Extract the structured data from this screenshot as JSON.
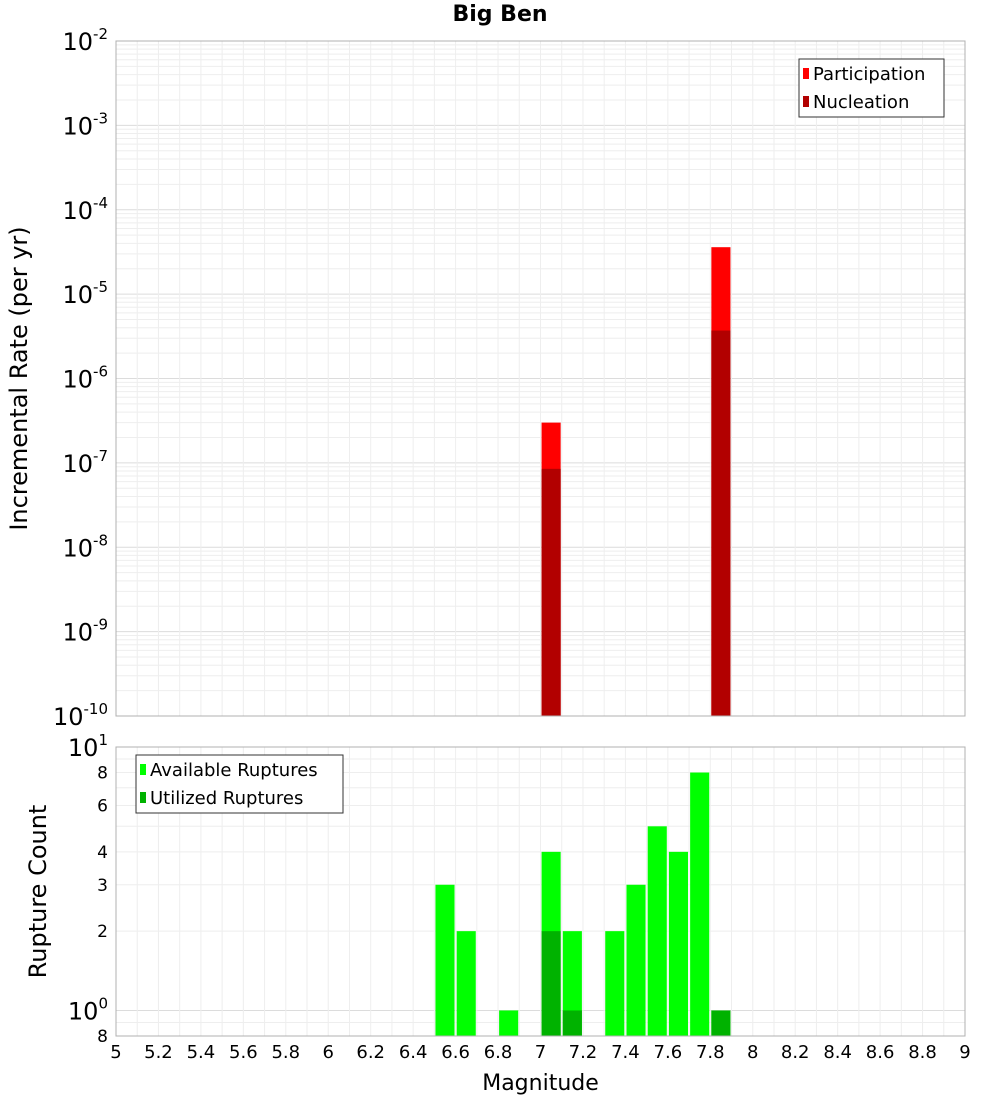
{
  "chart_data": {
    "title": "Big Ben",
    "xlabel": "Magnitude",
    "xlim": [
      5,
      9
    ],
    "bin_width": 0.09,
    "x_ticks": [
      "5",
      "5.2",
      "5.4",
      "5.6",
      "5.8",
      "6",
      "6.2",
      "6.4",
      "6.6",
      "6.8",
      "7",
      "7.2",
      "7.4",
      "7.6",
      "7.8",
      "8",
      "8.2",
      "8.4",
      "8.6",
      "8.8",
      "9"
    ],
    "grid": true,
    "panels": [
      {
        "type": "bar",
        "ylabel": "Incremental Rate (per yr)",
        "yscale": "log",
        "ylim": [
          1e-10,
          0.01
        ],
        "y_tick_labels": [
          {
            "base": "10",
            "exp": "-2"
          },
          {
            "base": "10",
            "exp": "-3"
          },
          {
            "base": "10",
            "exp": "-4"
          },
          {
            "base": "10",
            "exp": "-5"
          },
          {
            "base": "10",
            "exp": "-6"
          },
          {
            "base": "10",
            "exp": "-7"
          },
          {
            "base": "10",
            "exp": "-8"
          },
          {
            "base": "10",
            "exp": "-9"
          },
          {
            "base": "10",
            "exp": "-10"
          }
        ],
        "legend_position": "top-right",
        "series": [
          {
            "name": "Participation",
            "color": "#ff0000",
            "points": [
              {
                "x": 7.05,
                "y": 3e-07
              },
              {
                "x": 7.85,
                "y": 3.6e-05
              }
            ]
          },
          {
            "name": "Nucleation",
            "color": "#b20000",
            "points": [
              {
                "x": 7.05,
                "y": 8.5e-08
              },
              {
                "x": 7.85,
                "y": 3.7e-06
              }
            ]
          }
        ]
      },
      {
        "type": "bar",
        "ylabel": "Rupture Count",
        "yscale": "log",
        "ylim": [
          0.8,
          10
        ],
        "y_tick_labels": [
          {
            "base": "10",
            "exp": "1"
          },
          {
            "base": "8",
            "exp": ""
          },
          {
            "base": "6",
            "exp": ""
          },
          {
            "base": "4",
            "exp": ""
          },
          {
            "base": "3",
            "exp": ""
          },
          {
            "base": "2",
            "exp": ""
          },
          {
            "base": "10",
            "exp": "0"
          },
          {
            "base": "8",
            "exp": ""
          }
        ],
        "legend_position": "top-left",
        "series": [
          {
            "name": "Available Ruptures",
            "color": "#00ff00",
            "points": [
              {
                "x": 6.55,
                "y": 3
              },
              {
                "x": 6.65,
                "y": 2
              },
              {
                "x": 6.85,
                "y": 1
              },
              {
                "x": 7.05,
                "y": 4
              },
              {
                "x": 7.15,
                "y": 2
              },
              {
                "x": 7.35,
                "y": 2
              },
              {
                "x": 7.45,
                "y": 3
              },
              {
                "x": 7.55,
                "y": 5
              },
              {
                "x": 7.65,
                "y": 4
              },
              {
                "x": 7.75,
                "y": 8
              },
              {
                "x": 7.85,
                "y": 1
              }
            ]
          },
          {
            "name": "Utilized Ruptures",
            "color": "#00b200",
            "points": [
              {
                "x": 7.05,
                "y": 2
              },
              {
                "x": 7.15,
                "y": 1
              },
              {
                "x": 7.85,
                "y": 1
              }
            ]
          }
        ]
      }
    ]
  }
}
